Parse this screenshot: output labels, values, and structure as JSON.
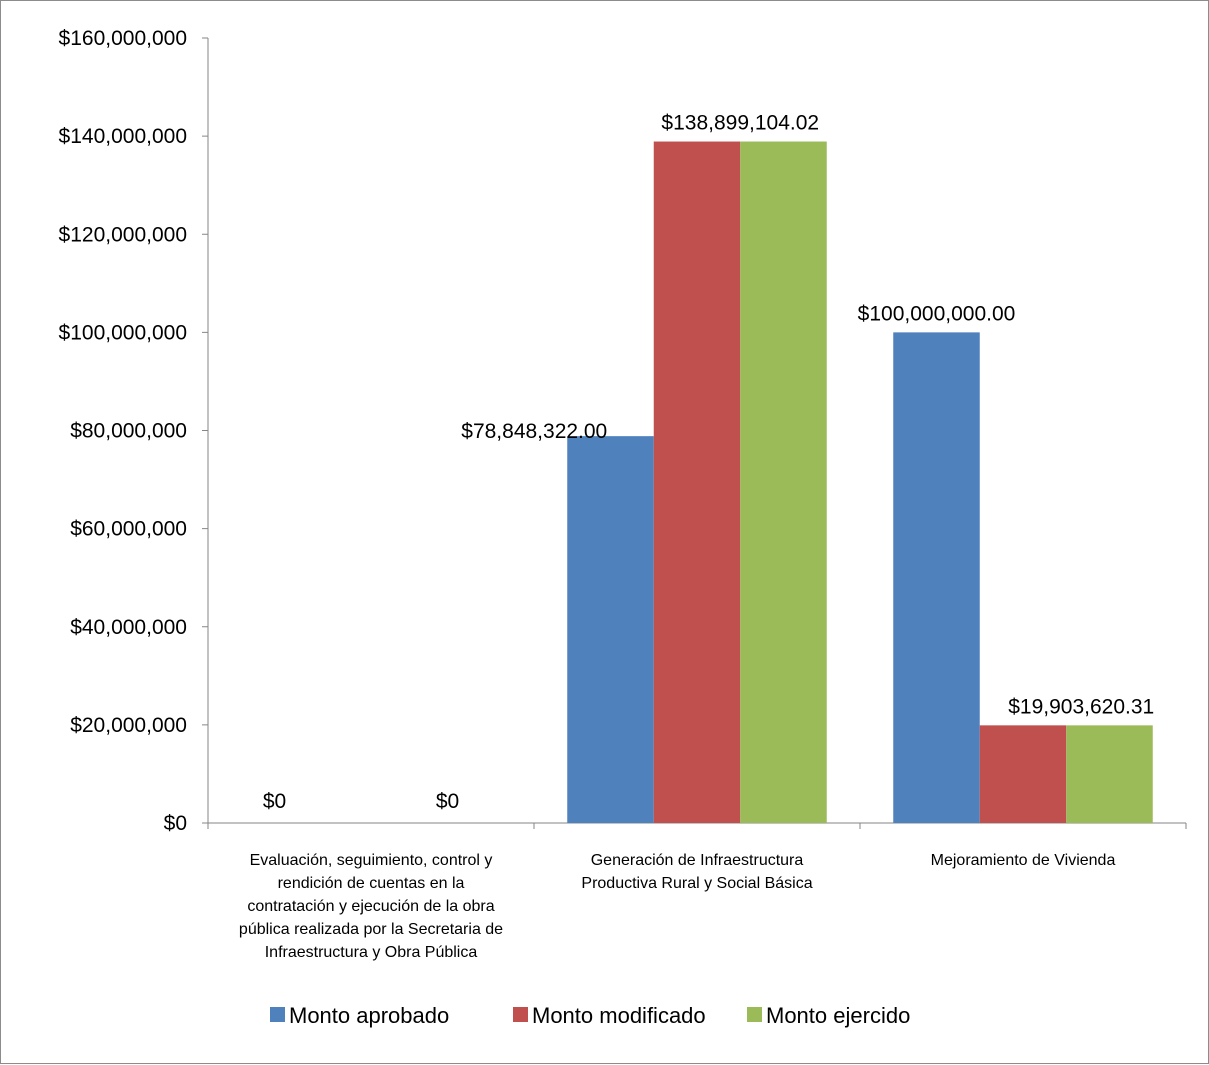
{
  "chart_data": {
    "type": "bar",
    "title": "",
    "xlabel": "",
    "ylabel": "",
    "ylim": [
      0,
      160000000
    ],
    "yticks": [
      0,
      20000000,
      40000000,
      60000000,
      80000000,
      100000000,
      120000000,
      140000000,
      160000000
    ],
    "ytick_labels": [
      "$0",
      "$20,000,000",
      "$40,000,000",
      "$60,000,000",
      "$80,000,000",
      "$100,000,000",
      "$120,000,000",
      "$140,000,000",
      "$160,000,000"
    ],
    "grid": false,
    "legend_position": "bottom",
    "categories": [
      "Evaluación, seguimiento, control y rendición de cuentas en la contratación y ejecución de la obra pública realizada por la Secretaria de Infraestructura y Obra Pública",
      "Generación de Infraestructura Productiva Rural y Social Básica",
      "Mejoramiento de Vivienda"
    ],
    "category_lines": [
      [
        "Evaluación, seguimiento, control y",
        "rendición de cuentas en la",
        "contratación y ejecución de la obra",
        "pública realizada por la Secretaria de",
        "Infraestructura y Obra Pública"
      ],
      [
        "Generación de Infraestructura",
        "Productiva Rural y Social Básica"
      ],
      [
        "Mejoramiento de Vivienda"
      ]
    ],
    "series": [
      {
        "name": "Monto aprobado",
        "color": "#4f81bd",
        "values": [
          0,
          78848322.0,
          100000000.0
        ]
      },
      {
        "name": "Monto modificado",
        "color": "#c0504d",
        "values": [
          0,
          138899104.02,
          19903620.31
        ]
      },
      {
        "name": "Monto ejercido",
        "color": "#9bbb59",
        "values": [
          0,
          138899104.02,
          19903620.31
        ]
      }
    ],
    "data_labels": [
      {
        "text": "$0",
        "category": 0,
        "series": 0
      },
      {
        "text": "$0",
        "category": 0,
        "series": 2
      },
      {
        "text": "$78,848,322.00",
        "category": 1,
        "series": 0
      },
      {
        "text": "$138,899,104.02",
        "category": 1,
        "series": 1
      },
      {
        "text": "$100,000,000.00",
        "category": 2,
        "series": 0
      },
      {
        "text": "$19,903,620.31",
        "category": 2,
        "series": 1
      }
    ]
  }
}
